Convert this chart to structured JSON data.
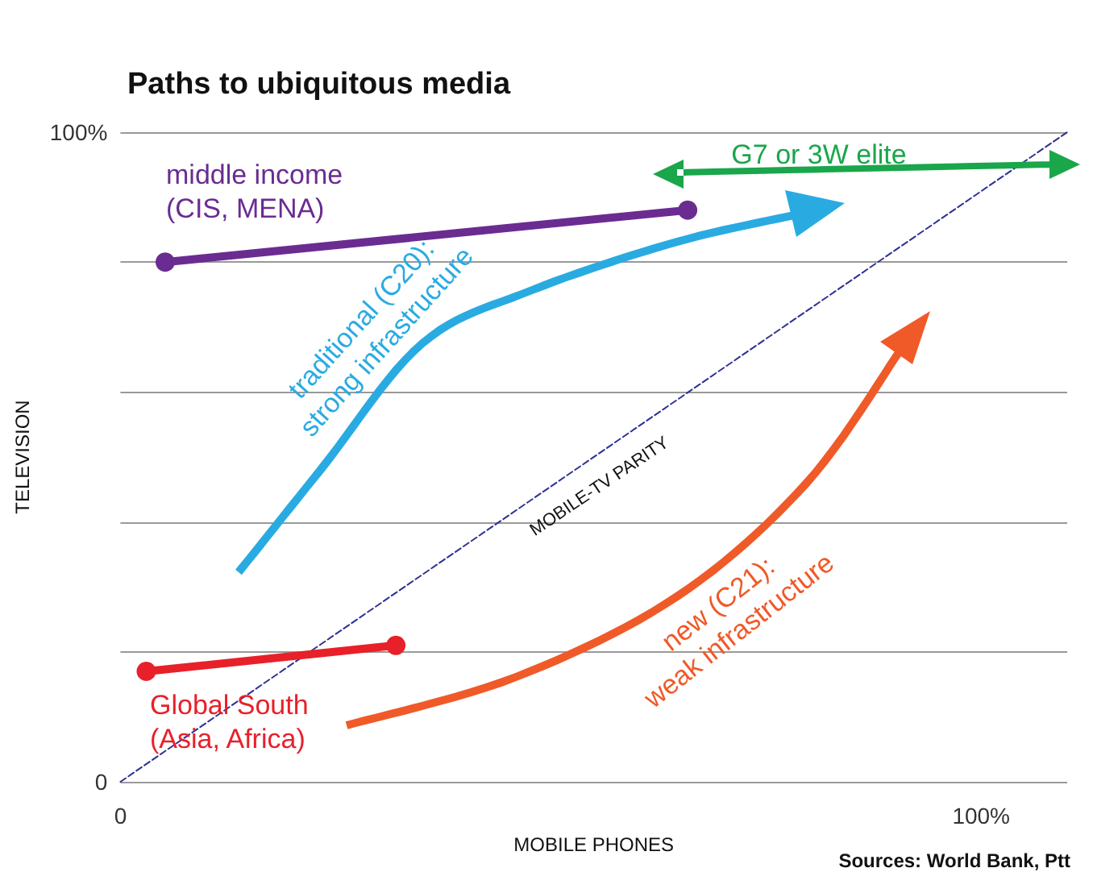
{
  "chart_data": {
    "type": "line",
    "title": "Paths to ubiquitous media",
    "xlabel": "MOBILE PHONES",
    "ylabel": "TELEVISION",
    "xlim": [
      0,
      110
    ],
    "ylim": [
      0,
      100
    ],
    "xticks": [
      {
        "value": 0,
        "label": "0"
      },
      {
        "value": 100,
        "label": "100%"
      }
    ],
    "yticks": [
      {
        "value": 0,
        "label": "0"
      },
      {
        "value": 20,
        "label": null
      },
      {
        "value": 40,
        "label": null
      },
      {
        "value": 60,
        "label": null
      },
      {
        "value": 80,
        "label": null
      },
      {
        "value": 100,
        "label": "100%"
      }
    ],
    "grid": "y",
    "series": [
      {
        "color": "#6a2c91",
        "marker": "circle",
        "x": [
          5.2,
          65.9
        ],
        "values": [
          80,
          88
        ]
      },
      {
        "color": "#e8202a",
        "marker": "circle",
        "x": [
          3,
          32
        ],
        "values": [
          17,
          21
        ]
      },
      {
        "color": "#2e3192",
        "marker": "none",
        "line_style": "dashed",
        "x": [
          0,
          110
        ],
        "values": [
          0,
          100
        ]
      }
    ],
    "annotations": [
      "middle income\n(CIS, MENA)",
      "G7 or 3W elite",
      "traditional (C20):\nstrong infrastructure",
      "Global South\n(Asia, Africa)",
      "new (C21):\nweak infrastructure",
      "MOBILE-TV PARITY",
      "Sources: World Bank, Ptt"
    ]
  }
}
